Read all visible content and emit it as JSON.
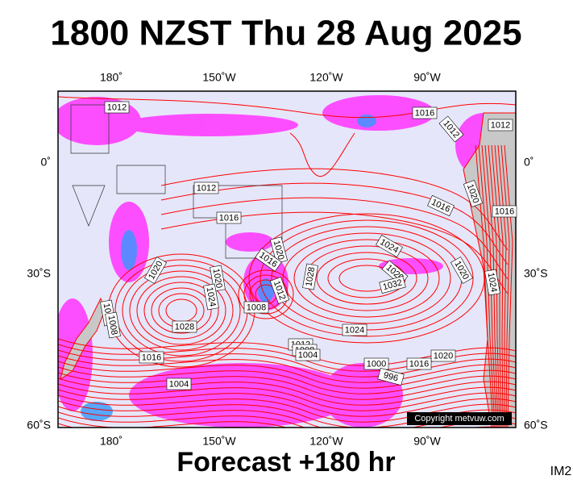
{
  "title": "1800 NZST Thu 28 Aug 2025",
  "forecast": "Forecast +180 hr",
  "image_id": "IM2",
  "copyright": "Copyright metvuw.com",
  "longitude_labels": [
    "180˚",
    "150˚W",
    "120˚W",
    "90˚W"
  ],
  "latitude_labels": [
    "0˚",
    "30˚S",
    "60˚S"
  ],
  "isobar_labels": [
    "1012",
    "1016",
    "1012",
    "1012",
    "1012",
    "1016",
    "1016",
    "1020",
    "1016",
    "1020",
    "1016",
    "1024",
    "1028",
    "1020",
    "1032",
    "1020",
    "1020",
    "1020",
    "1024",
    "1012",
    "1008",
    "1024",
    "1012",
    "1008",
    "1028",
    "1024",
    "1012",
    "1008",
    "1004",
    "1020",
    "1016",
    "1016",
    "1000",
    "996",
    "1004"
  ]
}
